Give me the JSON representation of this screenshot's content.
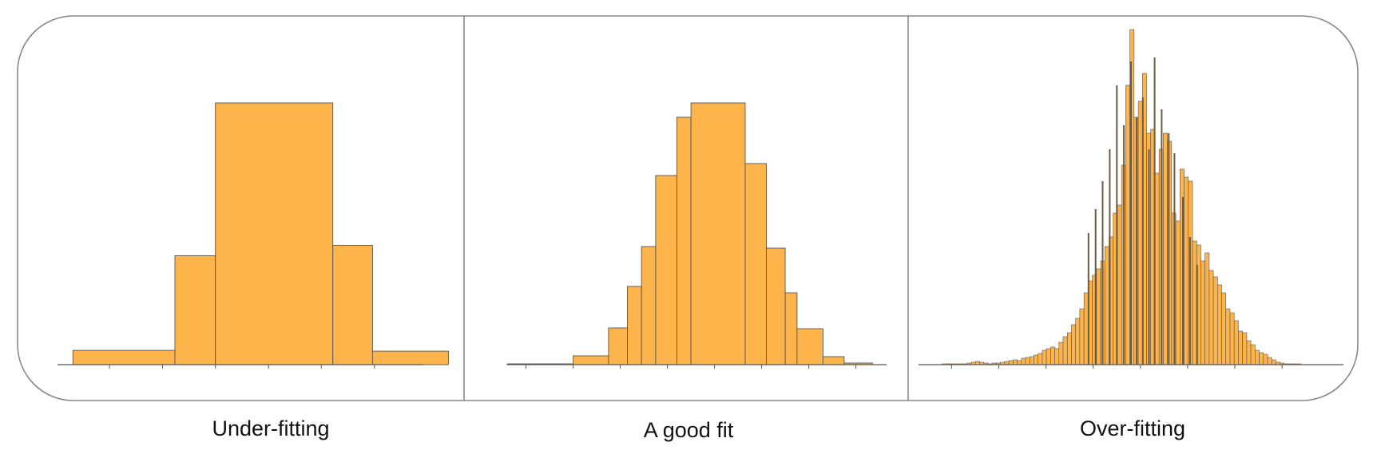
{
  "colors": {
    "bar_fill": "#fdb44b",
    "bar_stroke": "#555555",
    "axis": "#555555",
    "frame": "#888888"
  },
  "captions": [
    "Under-fitting",
    "A good fit",
    "Over-fitting"
  ],
  "chart_data": [
    {
      "type": "bar",
      "title": "",
      "caption": "Under-fitting",
      "xlabel": "",
      "ylabel": "",
      "ylim": [
        0,
        330
      ],
      "bins": [
        {
          "x0": 0.0,
          "x1": 2.65,
          "value": 18
        },
        {
          "x0": 2.65,
          "x1": 3.7,
          "value": 137
        },
        {
          "x0": 3.7,
          "x1": 6.75,
          "value": 329
        },
        {
          "x0": 6.75,
          "x1": 7.78,
          "value": 150
        },
        {
          "x0": 7.78,
          "x1": 9.75,
          "value": 17
        }
      ],
      "xlim": [
        -0.4,
        9.1
      ],
      "ticks": [
        0.95,
        2.33,
        3.7,
        5.08,
        6.45,
        7.83
      ]
    },
    {
      "type": "bar",
      "title": "",
      "caption": "A good fit",
      "xlabel": "",
      "ylabel": "",
      "ylim": [
        0,
        360
      ],
      "bins": [
        {
          "x0": 0.0,
          "x1": 1.4,
          "value": 1
        },
        {
          "x0": 1.4,
          "x1": 2.15,
          "value": 11
        },
        {
          "x0": 2.15,
          "x1": 2.55,
          "value": 46
        },
        {
          "x0": 2.55,
          "x1": 2.85,
          "value": 98
        },
        {
          "x0": 2.85,
          "x1": 3.15,
          "value": 148
        },
        {
          "x0": 3.15,
          "x1": 3.6,
          "value": 237
        },
        {
          "x0": 3.6,
          "x1": 3.9,
          "value": 310
        },
        {
          "x0": 3.9,
          "x1": 5.05,
          "value": 328
        },
        {
          "x0": 5.05,
          "x1": 5.5,
          "value": 252
        },
        {
          "x0": 5.5,
          "x1": 5.9,
          "value": 146
        },
        {
          "x0": 5.9,
          "x1": 6.15,
          "value": 90
        },
        {
          "x0": 6.15,
          "x1": 6.7,
          "value": 45
        },
        {
          "x0": 6.7,
          "x1": 7.15,
          "value": 10
        },
        {
          "x0": 7.15,
          "x1": 7.75,
          "value": 2
        }
      ],
      "xlim": [
        0,
        8.05
      ],
      "ticks": [
        0.4,
        1.4,
        2.4,
        3.4,
        4.4,
        5.4,
        6.4,
        7.4
      ]
    },
    {
      "type": "bar",
      "title": "",
      "caption": "Over-fitting",
      "xlabel": "",
      "ylabel": "",
      "ylim": [
        0,
        360
      ],
      "bin_edges": [
        0.9,
        1.6
      ],
      "bin_width": 0.07,
      "values": [
        1,
        1,
        1,
        1,
        1,
        1,
        2,
        3,
        4,
        3,
        2,
        1,
        2,
        2,
        3,
        4,
        5,
        6,
        5,
        8,
        9,
        10,
        12,
        14,
        18,
        20,
        22,
        20,
        28,
        35,
        40,
        50,
        58,
        70,
        90,
        105,
        112,
        120,
        130,
        148,
        160,
        190,
        200,
        250,
        350,
        420,
        310,
        330,
        365,
        290,
        295,
        240,
        270,
        290,
        280,
        190,
        180,
        245,
        235,
        230,
        155,
        150,
        130,
        140,
        118,
        110,
        100,
        90,
        70,
        65,
        55,
        42,
        40,
        30,
        25,
        18,
        15,
        13,
        9,
        6,
        3,
        2,
        1,
        1,
        1,
        1
      ],
      "dark_lines": [
        {
          "x": 3.6,
          "value": 165
        },
        {
          "x": 3.75,
          "value": 195
        },
        {
          "x": 3.9,
          "value": 230
        },
        {
          "x": 4.05,
          "value": 270
        },
        {
          "x": 4.2,
          "value": 350
        },
        {
          "x": 4.35,
          "value": 300
        },
        {
          "x": 4.5,
          "value": 380
        },
        {
          "x": 4.62,
          "value": 310
        },
        {
          "x": 4.75,
          "value": 335
        },
        {
          "x": 4.88,
          "value": 270
        },
        {
          "x": 5.0,
          "value": 385
        },
        {
          "x": 5.15,
          "value": 320
        },
        {
          "x": 5.3,
          "value": 290
        },
        {
          "x": 5.42,
          "value": 265
        },
        {
          "x": 5.6,
          "value": 210
        },
        {
          "x": 5.75,
          "value": 160
        },
        {
          "x": 5.9,
          "value": 125
        }
      ],
      "xlim": [
        0,
        9.0
      ],
      "ticks": [
        0.7,
        1.7,
        2.7,
        3.7,
        4.7,
        5.7,
        6.7,
        7.7
      ]
    }
  ]
}
